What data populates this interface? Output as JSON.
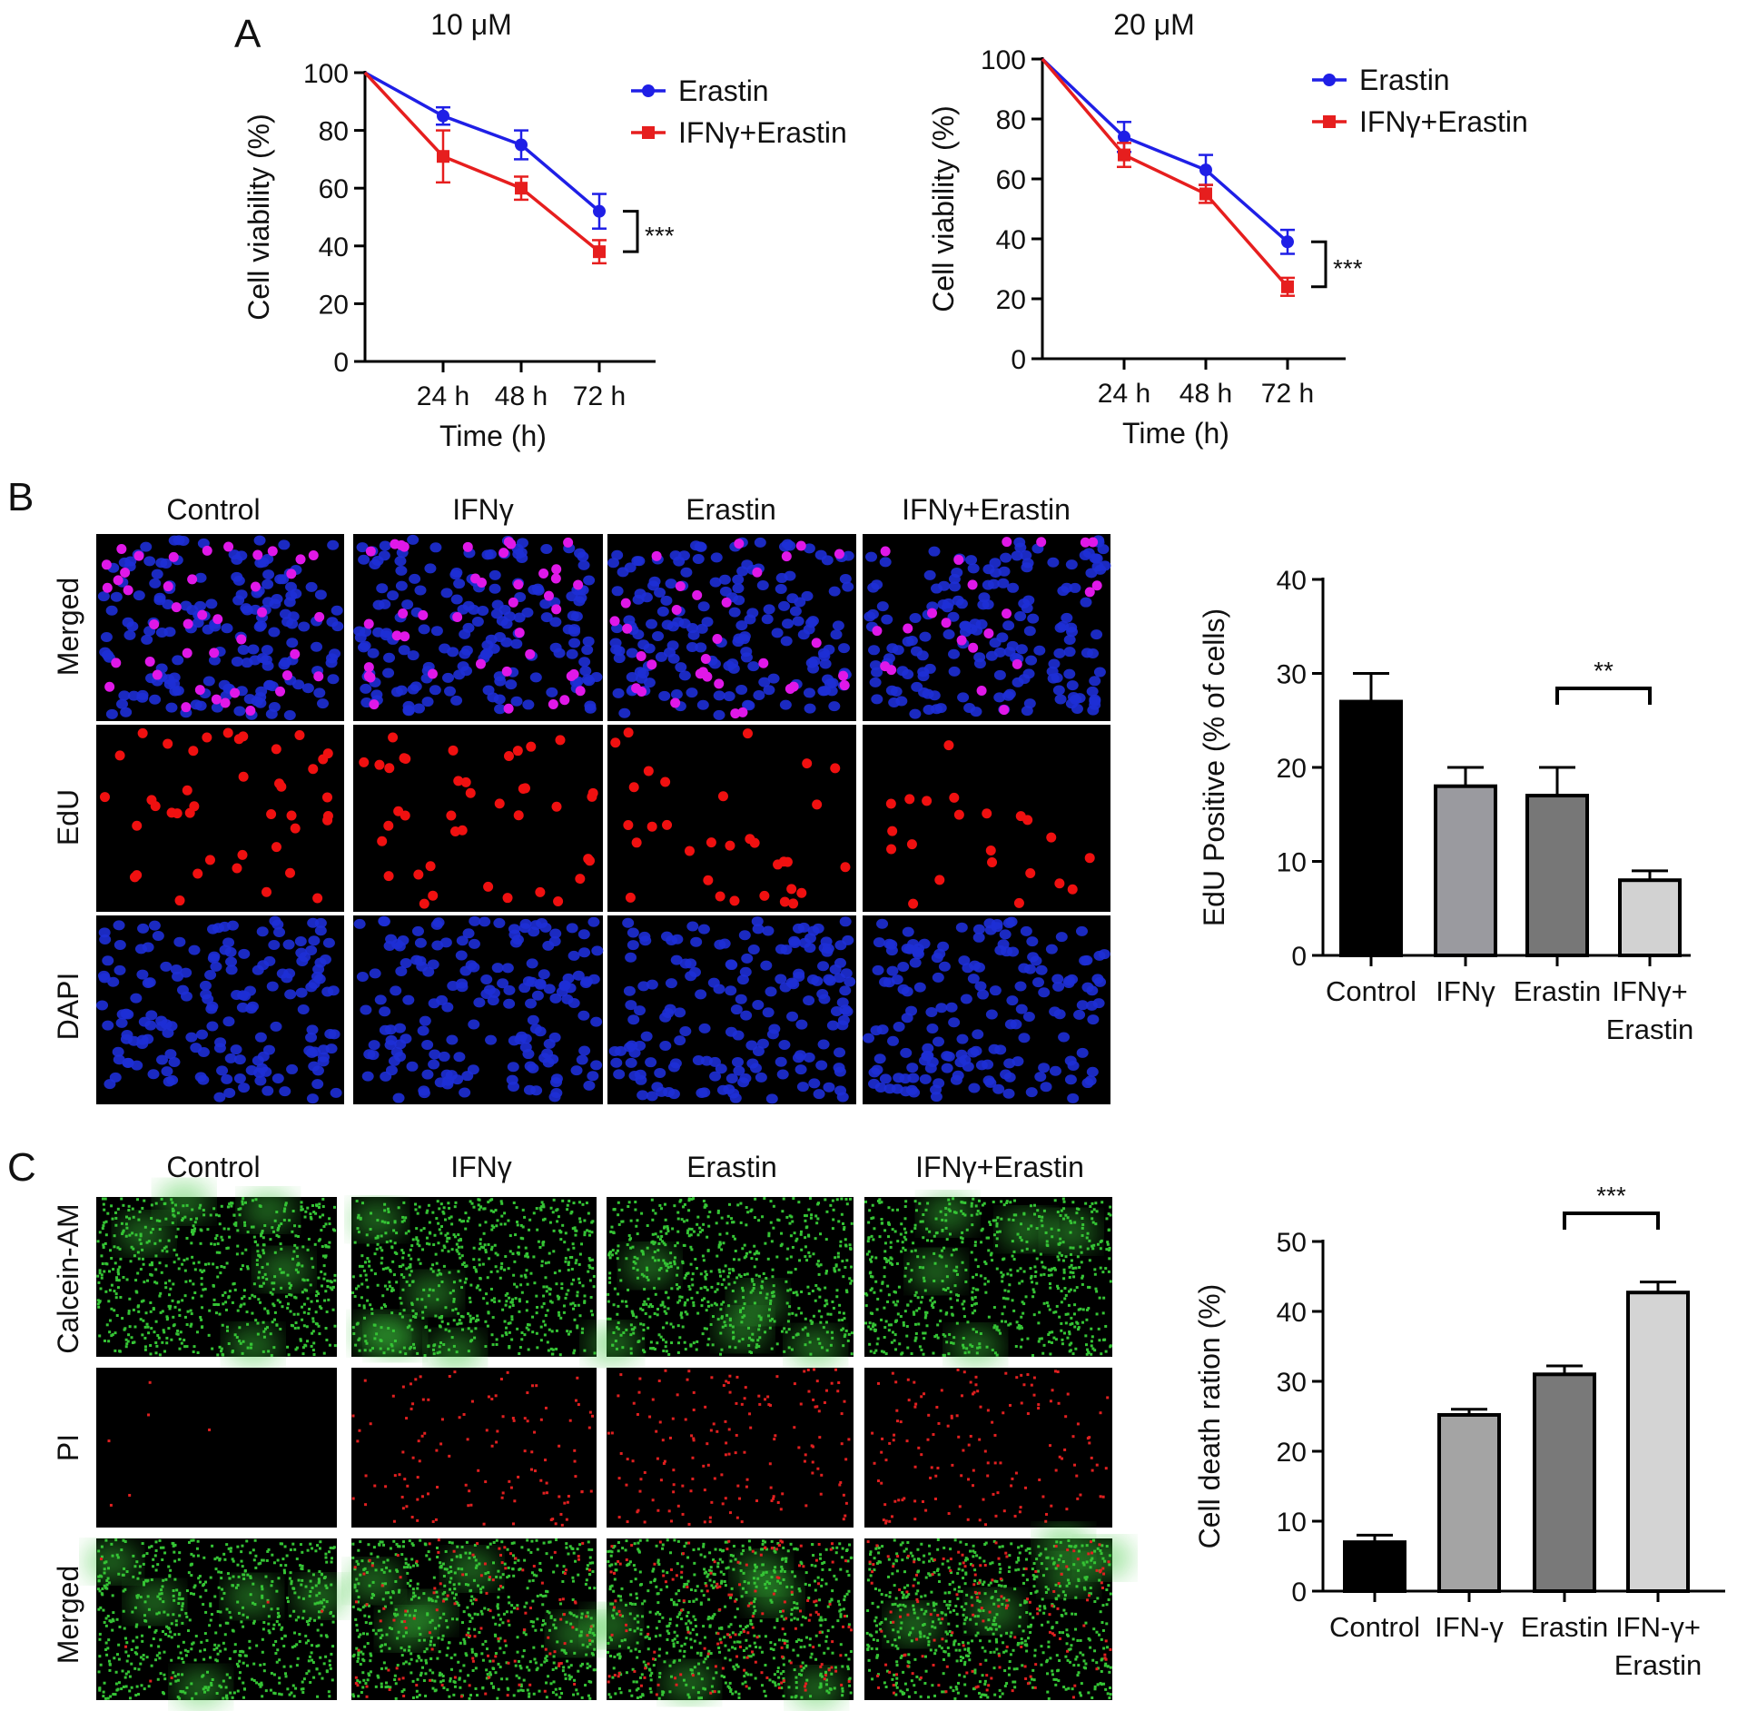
{
  "panel_letters": {
    "a": "A",
    "b": "B",
    "c": "C"
  },
  "colors": {
    "erastin": "#1f1fe6",
    "combo": "#e61e1e"
  },
  "micro": {
    "b_columns": [
      "Control",
      "IFNγ",
      "Erastin",
      "IFNγ+Erastin"
    ],
    "b_rows": [
      "Merged",
      "EdU",
      "DAPI"
    ],
    "c_columns": [
      "Control",
      "IFNγ",
      "Erastin",
      "IFNγ+Erastin"
    ],
    "c_rows": [
      "Calcein-AM",
      "PI",
      "Merged"
    ]
  },
  "chart_data": [
    {
      "type": "line",
      "title": "10 μM",
      "xlabel": "Time (h)",
      "ylabel": "Cell viability (%)",
      "ylim": [
        0,
        100
      ],
      "yticks": [
        0,
        20,
        40,
        60,
        80,
        100
      ],
      "x": [
        0,
        24,
        48,
        72
      ],
      "xticklabels": [
        "24 h",
        "48 h",
        "72 h"
      ],
      "series": [
        {
          "name": "Erastin",
          "values": [
            100,
            85,
            75,
            52
          ],
          "errors": [
            0,
            3,
            5,
            6
          ]
        },
        {
          "name": "IFNγ+Erastin",
          "values": [
            100,
            71,
            60,
            38
          ],
          "errors": [
            0,
            9,
            4,
            4
          ]
        }
      ],
      "annotation": "***",
      "legend": "top-right"
    },
    {
      "type": "line",
      "title": "20 μM",
      "xlabel": "Time (h)",
      "ylabel": "Cell viability (%)",
      "ylim": [
        0,
        100
      ],
      "yticks": [
        0,
        20,
        40,
        60,
        80,
        100
      ],
      "x": [
        0,
        24,
        48,
        72
      ],
      "xticklabels": [
        "24 h",
        "48 h",
        "72 h"
      ],
      "series": [
        {
          "name": "Erastin",
          "values": [
            100,
            74,
            63,
            39
          ],
          "errors": [
            0,
            5,
            5,
            4
          ]
        },
        {
          "name": "IFNγ+Erastin",
          "values": [
            100,
            68,
            55,
            24
          ],
          "errors": [
            0,
            4,
            3,
            3
          ]
        }
      ],
      "annotation": "***",
      "legend": "top-right"
    },
    {
      "type": "bar",
      "categories": [
        "Control",
        "IFNγ",
        "Erastin",
        "IFNγ+ Erastin"
      ],
      "values": [
        27,
        18,
        17,
        8
      ],
      "errors": [
        3,
        2,
        3,
        1
      ],
      "colors": [
        "#000000",
        "#9a9a9f",
        "#777777",
        "#d2d2d2"
      ],
      "ylabel": "EdU Positive (% of cells)",
      "ylim": [
        0,
        40
      ],
      "yticks": [
        0,
        10,
        20,
        30,
        40
      ],
      "annotation": "**"
    },
    {
      "type": "bar",
      "categories": [
        "Control",
        "IFN-γ",
        "Erastin",
        "IFN-γ+ Erastin"
      ],
      "values": [
        7,
        25.2,
        31,
        42.7
      ],
      "errors": [
        1,
        0.8,
        1.2,
        1.5
      ],
      "colors": [
        "#000000",
        "#a4a4a4",
        "#797979",
        "#d4d4d4"
      ],
      "ylabel": "Cell death ration (%)",
      "ylim": [
        0,
        50
      ],
      "yticks": [
        0,
        10,
        20,
        30,
        40,
        50
      ],
      "annotation": "***"
    }
  ]
}
